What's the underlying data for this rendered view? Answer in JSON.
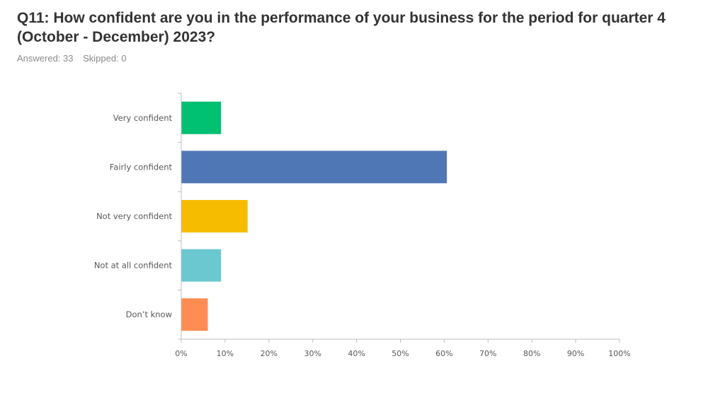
{
  "question": {
    "title": "Q11: How confident are you in the performance of your business for the period for quarter 4 (October - December) 2023?",
    "answered": "Answered: 33",
    "skipped": "Skipped: 0"
  },
  "chart_data": {
    "type": "bar",
    "orientation": "horizontal",
    "categories": [
      "Very confident",
      "Fairly confident",
      "Not very confident",
      "Not at all confident",
      "Don’t know"
    ],
    "values": [
      9.09,
      60.61,
      15.15,
      9.09,
      6.06
    ],
    "colors": [
      "#00C071",
      "#5077B5",
      "#F6BD00",
      "#6BC8D0",
      "#FF8C52"
    ],
    "xlim": [
      0,
      100
    ],
    "xticks": [
      0,
      10,
      20,
      30,
      40,
      50,
      60,
      70,
      80,
      90,
      100
    ],
    "xtick_labels": [
      "0%",
      "10%",
      "20%",
      "30%",
      "40%",
      "50%",
      "60%",
      "70%",
      "80%",
      "90%",
      "100%"
    ],
    "grid": false,
    "legend": "none"
  }
}
